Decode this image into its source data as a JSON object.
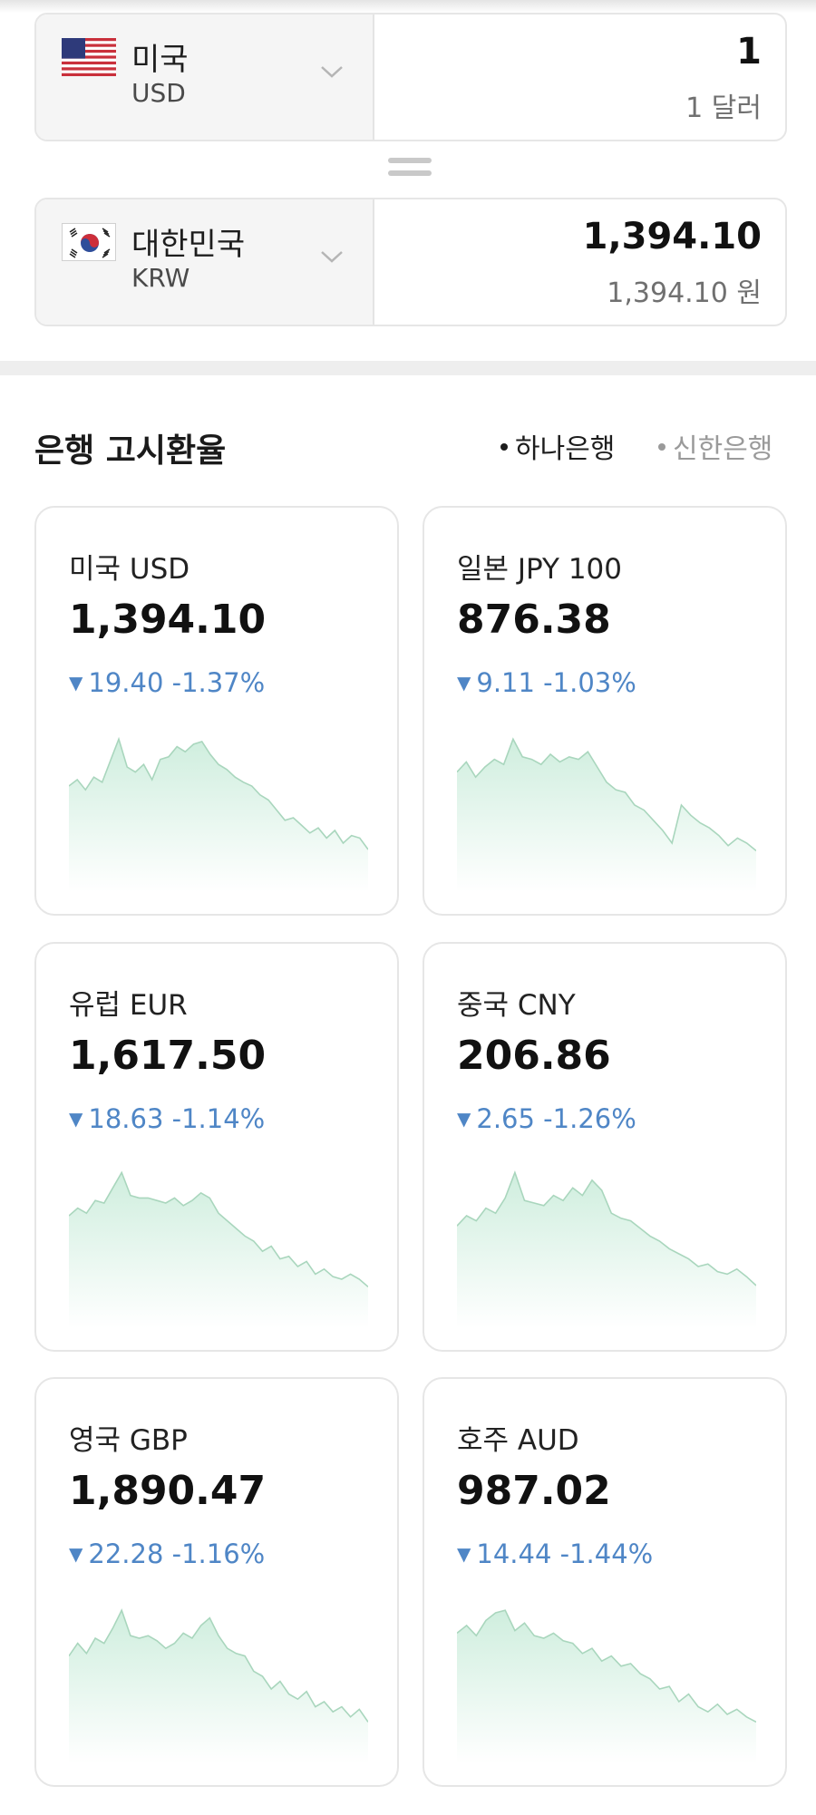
{
  "converter": {
    "from": {
      "name": "미국",
      "code": "USD",
      "amount": "1",
      "amount_text": "1 달러"
    },
    "to": {
      "name": "대한민국",
      "code": "KRW",
      "amount": "1,394.10",
      "amount_text": "1,394.10 원"
    }
  },
  "bank_rates": {
    "title": "은행 고시환율",
    "banks": [
      {
        "label": "하나은행",
        "selected": true
      },
      {
        "label": "신한은행",
        "selected": false
      }
    ],
    "cards": [
      {
        "title": "미국 USD",
        "rate": "1,394.10",
        "change": "19.40 -1.37%",
        "spark": [
          0.55,
          0.6,
          0.52,
          0.62,
          0.58,
          0.75,
          0.92,
          0.7,
          0.66,
          0.72,
          0.6,
          0.76,
          0.78,
          0.86,
          0.82,
          0.88,
          0.9,
          0.8,
          0.72,
          0.68,
          0.62,
          0.58,
          0.55,
          0.48,
          0.44,
          0.36,
          0.28,
          0.3,
          0.24,
          0.18,
          0.22,
          0.14,
          0.2,
          0.1,
          0.16,
          0.14,
          0.05
        ]
      },
      {
        "title": "일본 JPY 100",
        "rate": "876.38",
        "change": "9.11 -1.03%",
        "spark": [
          0.66,
          0.74,
          0.62,
          0.7,
          0.76,
          0.72,
          0.92,
          0.78,
          0.76,
          0.72,
          0.8,
          0.74,
          0.78,
          0.76,
          0.82,
          0.7,
          0.58,
          0.52,
          0.5,
          0.4,
          0.36,
          0.28,
          0.2,
          0.1,
          0.4,
          0.32,
          0.26,
          0.22,
          0.16,
          0.08,
          0.14,
          0.1,
          0.04
        ]
      },
      {
        "title": "유럽 EUR",
        "rate": "1,617.50",
        "change": "18.63 -1.14%",
        "spark": [
          0.6,
          0.66,
          0.62,
          0.72,
          0.7,
          0.82,
          0.94,
          0.76,
          0.74,
          0.74,
          0.72,
          0.7,
          0.74,
          0.68,
          0.72,
          0.78,
          0.74,
          0.62,
          0.56,
          0.5,
          0.44,
          0.4,
          0.32,
          0.36,
          0.26,
          0.28,
          0.2,
          0.24,
          0.14,
          0.18,
          0.12,
          0.1,
          0.14,
          0.1,
          0.04
        ]
      },
      {
        "title": "중국 CNY",
        "rate": "206.86",
        "change": "2.65 -1.26%",
        "spark": [
          0.52,
          0.6,
          0.56,
          0.66,
          0.62,
          0.74,
          0.94,
          0.72,
          0.7,
          0.68,
          0.76,
          0.72,
          0.82,
          0.76,
          0.88,
          0.8,
          0.62,
          0.58,
          0.56,
          0.5,
          0.44,
          0.4,
          0.34,
          0.3,
          0.26,
          0.2,
          0.22,
          0.16,
          0.14,
          0.18,
          0.12,
          0.05
        ]
      },
      {
        "title": "영국 GBP",
        "rate": "1,890.47",
        "change": "22.28 -1.16%",
        "spark": [
          0.56,
          0.66,
          0.58,
          0.7,
          0.66,
          0.78,
          0.92,
          0.72,
          0.7,
          0.72,
          0.68,
          0.62,
          0.66,
          0.74,
          0.7,
          0.8,
          0.86,
          0.72,
          0.62,
          0.58,
          0.56,
          0.44,
          0.4,
          0.3,
          0.36,
          0.26,
          0.22,
          0.28,
          0.16,
          0.2,
          0.12,
          0.16,
          0.08,
          0.14,
          0.04
        ]
      },
      {
        "title": "호주 AUD",
        "rate": "987.02",
        "change": "14.44 -1.44%",
        "spark": [
          0.74,
          0.8,
          0.72,
          0.84,
          0.9,
          0.92,
          0.76,
          0.82,
          0.72,
          0.7,
          0.74,
          0.68,
          0.66,
          0.58,
          0.62,
          0.52,
          0.56,
          0.48,
          0.5,
          0.42,
          0.38,
          0.3,
          0.32,
          0.2,
          0.26,
          0.16,
          0.12,
          0.18,
          0.1,
          0.14,
          0.08,
          0.04
        ]
      }
    ]
  }
}
